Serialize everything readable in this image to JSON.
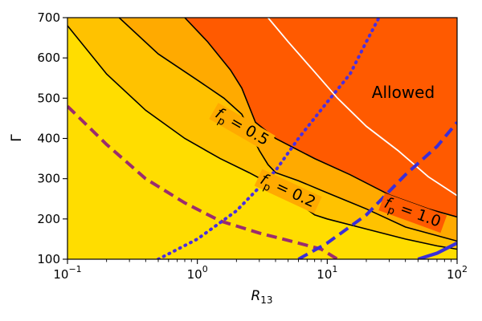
{
  "chart_data": {
    "type": "contour",
    "xlabel": "R",
    "xlabel_sub": "13",
    "ylabel": "Γ",
    "xscale": "log",
    "xlim": [
      0.1,
      100
    ],
    "ylim": [
      100,
      700
    ],
    "x_ticks": [
      {
        "value": 0.1,
        "base": "10",
        "exp": "−1"
      },
      {
        "value": 1,
        "base": "10",
        "exp": "0"
      },
      {
        "value": 10,
        "base": "10",
        "exp": "1"
      },
      {
        "value": 100,
        "base": "10",
        "exp": "2"
      }
    ],
    "y_ticks": [
      {
        "value": 100,
        "label": "100"
      },
      {
        "value": 200,
        "label": "200"
      },
      {
        "value": 300,
        "label": "300"
      },
      {
        "value": 400,
        "label": "400"
      },
      {
        "value": 500,
        "label": "500"
      },
      {
        "value": 600,
        "label": "600"
      },
      {
        "value": 700,
        "label": "700"
      }
    ],
    "regions": [
      {
        "id": "low",
        "color": "#ffdd00"
      },
      {
        "id": "mid",
        "color": "#ffc200"
      },
      {
        "id": "high",
        "color": "#ffaa00"
      },
      {
        "id": "allowed",
        "color": "#ff5a00",
        "label": "Allowed"
      }
    ],
    "contours": [
      {
        "id": "fp-0-2",
        "color": "#000000",
        "points": [
          [
            0.1,
            680
          ],
          [
            0.2,
            560
          ],
          [
            0.4,
            470
          ],
          [
            0.8,
            400
          ],
          [
            1.5,
            350
          ],
          [
            2.5,
            315
          ],
          [
            4.0,
            280
          ],
          [
            6.0,
            240
          ],
          [
            8.0,
            210
          ],
          [
            10,
            200
          ],
          [
            20,
            175
          ],
          [
            40,
            150
          ],
          [
            70,
            133
          ],
          [
            100,
            125
          ]
        ]
      },
      {
        "id": "fp-0-5",
        "color": "#000000",
        "points": [
          [
            0.25,
            700
          ],
          [
            0.5,
            610
          ],
          [
            1.0,
            545
          ],
          [
            1.6,
            500
          ],
          [
            2.2,
            460
          ],
          [
            2.6,
            410
          ],
          [
            3.0,
            370
          ],
          [
            3.5,
            335
          ],
          [
            4.0,
            315
          ],
          [
            6.0,
            295
          ],
          [
            10,
            265
          ],
          [
            20,
            225
          ],
          [
            40,
            180
          ],
          [
            100,
            145
          ]
        ]
      },
      {
        "id": "fp-1-0",
        "color": "#000000",
        "points": [
          [
            0.8,
            700
          ],
          [
            1.2,
            640
          ],
          [
            1.8,
            570
          ],
          [
            2.2,
            525
          ],
          [
            2.8,
            440
          ],
          [
            4,
            400
          ],
          [
            8,
            350
          ],
          [
            15,
            310
          ],
          [
            30,
            260
          ],
          [
            60,
            225
          ],
          [
            100,
            205
          ]
        ]
      },
      {
        "id": "white-boundary",
        "color": "#ffffff",
        "points": [
          [
            3.5,
            700
          ],
          [
            5,
            640
          ],
          [
            8,
            565
          ],
          [
            12,
            500
          ],
          [
            20,
            430
          ],
          [
            35,
            370
          ],
          [
            60,
            305
          ],
          [
            100,
            258
          ]
        ]
      }
    ],
    "annotations": [
      {
        "id": "fp-0-5",
        "base": "f",
        "sub": "p",
        "text": " = 0.5",
        "x": 1.35,
        "y": 455,
        "angle": 30
      },
      {
        "id": "fp-0-2",
        "base": "f",
        "sub": "p",
        "text": " = 0.2",
        "x": 3.0,
        "y": 290,
        "angle": 25
      },
      {
        "id": "fp-1-0",
        "base": "f",
        "sub": "p",
        "text": " = 1.0",
        "x": 27,
        "y": 230,
        "angle": 20
      }
    ],
    "boundary_curves": [
      {
        "id": "purple-dashed",
        "style": "dashed",
        "color": "#9b2c6e",
        "points": [
          [
            0.1,
            480
          ],
          [
            0.2,
            385
          ],
          [
            0.4,
            300
          ],
          [
            0.8,
            240
          ],
          [
            1.5,
            195
          ],
          [
            3,
            165
          ],
          [
            6,
            140
          ],
          [
            9,
            125
          ],
          [
            12,
            100
          ]
        ]
      },
      {
        "id": "blue-dotted",
        "style": "dotted",
        "color": "#4a2ee0",
        "points": [
          [
            0.5,
            100
          ],
          [
            1,
            150
          ],
          [
            2,
            220
          ],
          [
            4,
            320
          ],
          [
            6,
            400
          ],
          [
            10,
            490
          ],
          [
            15,
            560
          ],
          [
            20,
            640
          ],
          [
            25,
            700
          ]
        ]
      },
      {
        "id": "blue-dashed",
        "style": "dashed",
        "color": "#3a2ed8",
        "points": [
          [
            6,
            100
          ],
          [
            10,
            140
          ],
          [
            20,
            210
          ],
          [
            40,
            310
          ],
          [
            70,
            380
          ],
          [
            100,
            440
          ]
        ]
      },
      {
        "id": "blue-solid",
        "style": "solid",
        "color": "#3a2ed8",
        "points": [
          [
            50,
            100
          ],
          [
            70,
            115
          ],
          [
            100,
            140
          ]
        ]
      }
    ]
  }
}
